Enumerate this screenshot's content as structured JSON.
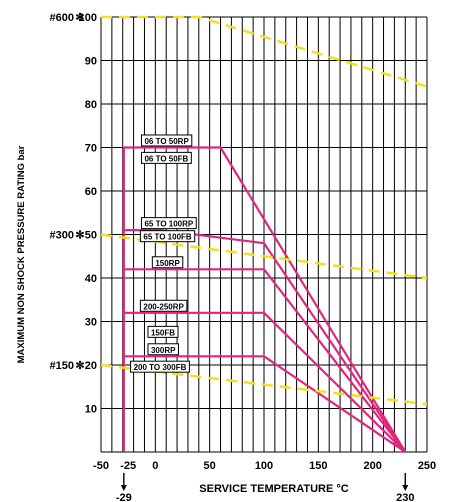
{
  "chart_data": {
    "type": "line",
    "xlabel": "SERVICE TEMPERATURE °C",
    "ylabel": "MAXIMUM NON SHOCK PRESSURE RATING bar",
    "xlim": [
      -50,
      250
    ],
    "ylim": [
      0,
      100
    ],
    "grid": true,
    "x_ticks": [
      "-50",
      "-25",
      "0",
      "50",
      "100",
      "150",
      "200",
      "250"
    ],
    "y_ticks": [
      "10",
      "20",
      "30",
      "40",
      "50",
      "60",
      "70",
      "80",
      "90",
      "100"
    ],
    "class_labels": [
      {
        "text": "#600",
        "y": 100
      },
      {
        "text": "#300",
        "y": 50
      },
      {
        "text": "#150",
        "y": 20
      }
    ],
    "below_axis_marks": [
      {
        "text": "-29",
        "x": -29
      },
      {
        "text": "230",
        "x": 230
      }
    ],
    "series": [
      {
        "color": "#e0267f",
        "x": [
          -29,
          -29,
          60,
          230
        ],
        "y": [
          0,
          70,
          70,
          0
        ]
      },
      {
        "color": "#e0267f",
        "x": [
          -29,
          5,
          100,
          230
        ],
        "y": [
          51,
          51,
          48,
          0
        ]
      },
      {
        "color": "#e0267f",
        "x": [
          -29,
          100,
          230
        ],
        "y": [
          42,
          42,
          0
        ]
      },
      {
        "color": "#e0267f",
        "x": [
          -29,
          100,
          230
        ],
        "y": [
          32,
          32,
          0
        ]
      },
      {
        "color": "#e0267f",
        "x": [
          -29,
          100,
          230
        ],
        "y": [
          22,
          22,
          0
        ]
      },
      {
        "color": "#f5df1b",
        "dashed": true,
        "x": [
          -50,
          40,
          250
        ],
        "y": [
          100,
          100,
          84
        ]
      },
      {
        "color": "#f5df1b",
        "dashed": true,
        "x": [
          -50,
          250
        ],
        "y": [
          50,
          40
        ]
      },
      {
        "color": "#f5df1b",
        "dashed": true,
        "x": [
          -50,
          250
        ],
        "y": [
          20,
          11
        ]
      }
    ],
    "rating_labels": [
      {
        "text": "06 TO 50RP",
        "x": -10,
        "y": 71.5
      },
      {
        "text": "06 TO 50FB",
        "x": -10,
        "y": 67.5
      },
      {
        "text": "65 TO 100RP",
        "x": -10,
        "y": 52.5
      },
      {
        "text": "65 TO 100FB",
        "x": -11,
        "y": 49.5
      },
      {
        "text": "150RP",
        "x": 0,
        "y": 43.5
      },
      {
        "text": "200-250RP",
        "x": -11,
        "y": 33.5
      },
      {
        "text": "150FB",
        "x": -4,
        "y": 27.5
      },
      {
        "text": "300RP",
        "x": -4,
        "y": 23.5
      },
      {
        "text": "200 TO 300FB",
        "x": -20,
        "y": 19.5
      }
    ]
  }
}
